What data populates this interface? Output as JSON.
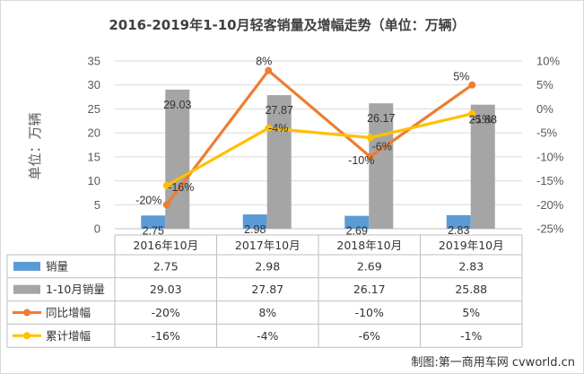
{
  "credit": "制图:第一商用车网 cvworld.cn",
  "chart_data": {
    "type": "bar",
    "title": "2016-2019年1-10月轻客销量及增幅走势（单位：万辆）",
    "ylabel": "单位：万辆",
    "categories": [
      "2016年10月",
      "2017年10月",
      "2018年10月",
      "2019年10月"
    ],
    "y_ticks": [
      "0",
      "5",
      "10",
      "15",
      "20",
      "25",
      "30",
      "35"
    ],
    "y2_ticks": [
      "10%",
      "5%",
      "0%",
      "-5%",
      "-10%",
      "-15%",
      "-20%",
      "-25%"
    ],
    "ylim": [
      0,
      35
    ],
    "y2lim": [
      -25,
      10
    ],
    "grid": true,
    "series": [
      {
        "name": "销量",
        "type": "bar",
        "axis": "left",
        "color": "#5B9BD5",
        "values": [
          2.75,
          2.98,
          2.69,
          2.83
        ],
        "labels": [
          "2.75",
          "2.98",
          "2.69",
          "2.83"
        ]
      },
      {
        "name": "1-10月销量",
        "type": "bar",
        "axis": "left",
        "color": "#A5A5A5",
        "values": [
          29.03,
          27.87,
          26.17,
          25.88
        ],
        "labels": [
          "29.03",
          "27.87",
          "26.17",
          "25.88"
        ]
      },
      {
        "name": "同比增幅",
        "type": "line",
        "axis": "right",
        "color": "#ED7D31",
        "values": [
          -20,
          8,
          -10,
          5
        ],
        "labels": [
          "-20%",
          "8%",
          "-10%",
          "5%"
        ]
      },
      {
        "name": "累计增幅",
        "type": "line",
        "axis": "right",
        "color": "#FFC000",
        "values": [
          -16,
          -4,
          -6,
          -1
        ],
        "labels": [
          "-16%",
          "-4%",
          "-6%",
          "-1%"
        ]
      }
    ]
  }
}
